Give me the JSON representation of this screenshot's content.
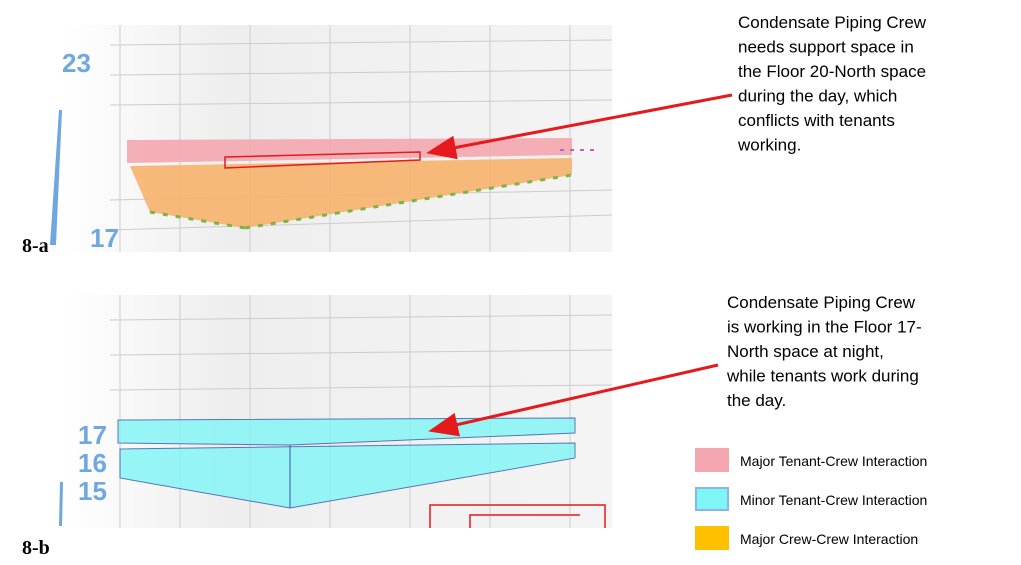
{
  "panels": [
    {
      "label": "8-a",
      "floors": [
        "23",
        "17"
      ],
      "annotation": [
        "Condensate Piping Crew",
        "needs support space in",
        "the Floor 20-North space",
        "during the day, which",
        "conflicts with tenants",
        "working."
      ]
    },
    {
      "label": "8-b",
      "floors": [
        "17",
        "16",
        "15"
      ],
      "annotation": [
        "Condensate Piping Crew",
        "is working in the Floor 17-",
        "North space at night,",
        "while tenants work during",
        "the day."
      ]
    }
  ],
  "legend": [
    "Major Tenant-Crew Interaction",
    "Minor Tenant-Crew Interaction",
    "Major Crew-Crew Interaction"
  ]
}
